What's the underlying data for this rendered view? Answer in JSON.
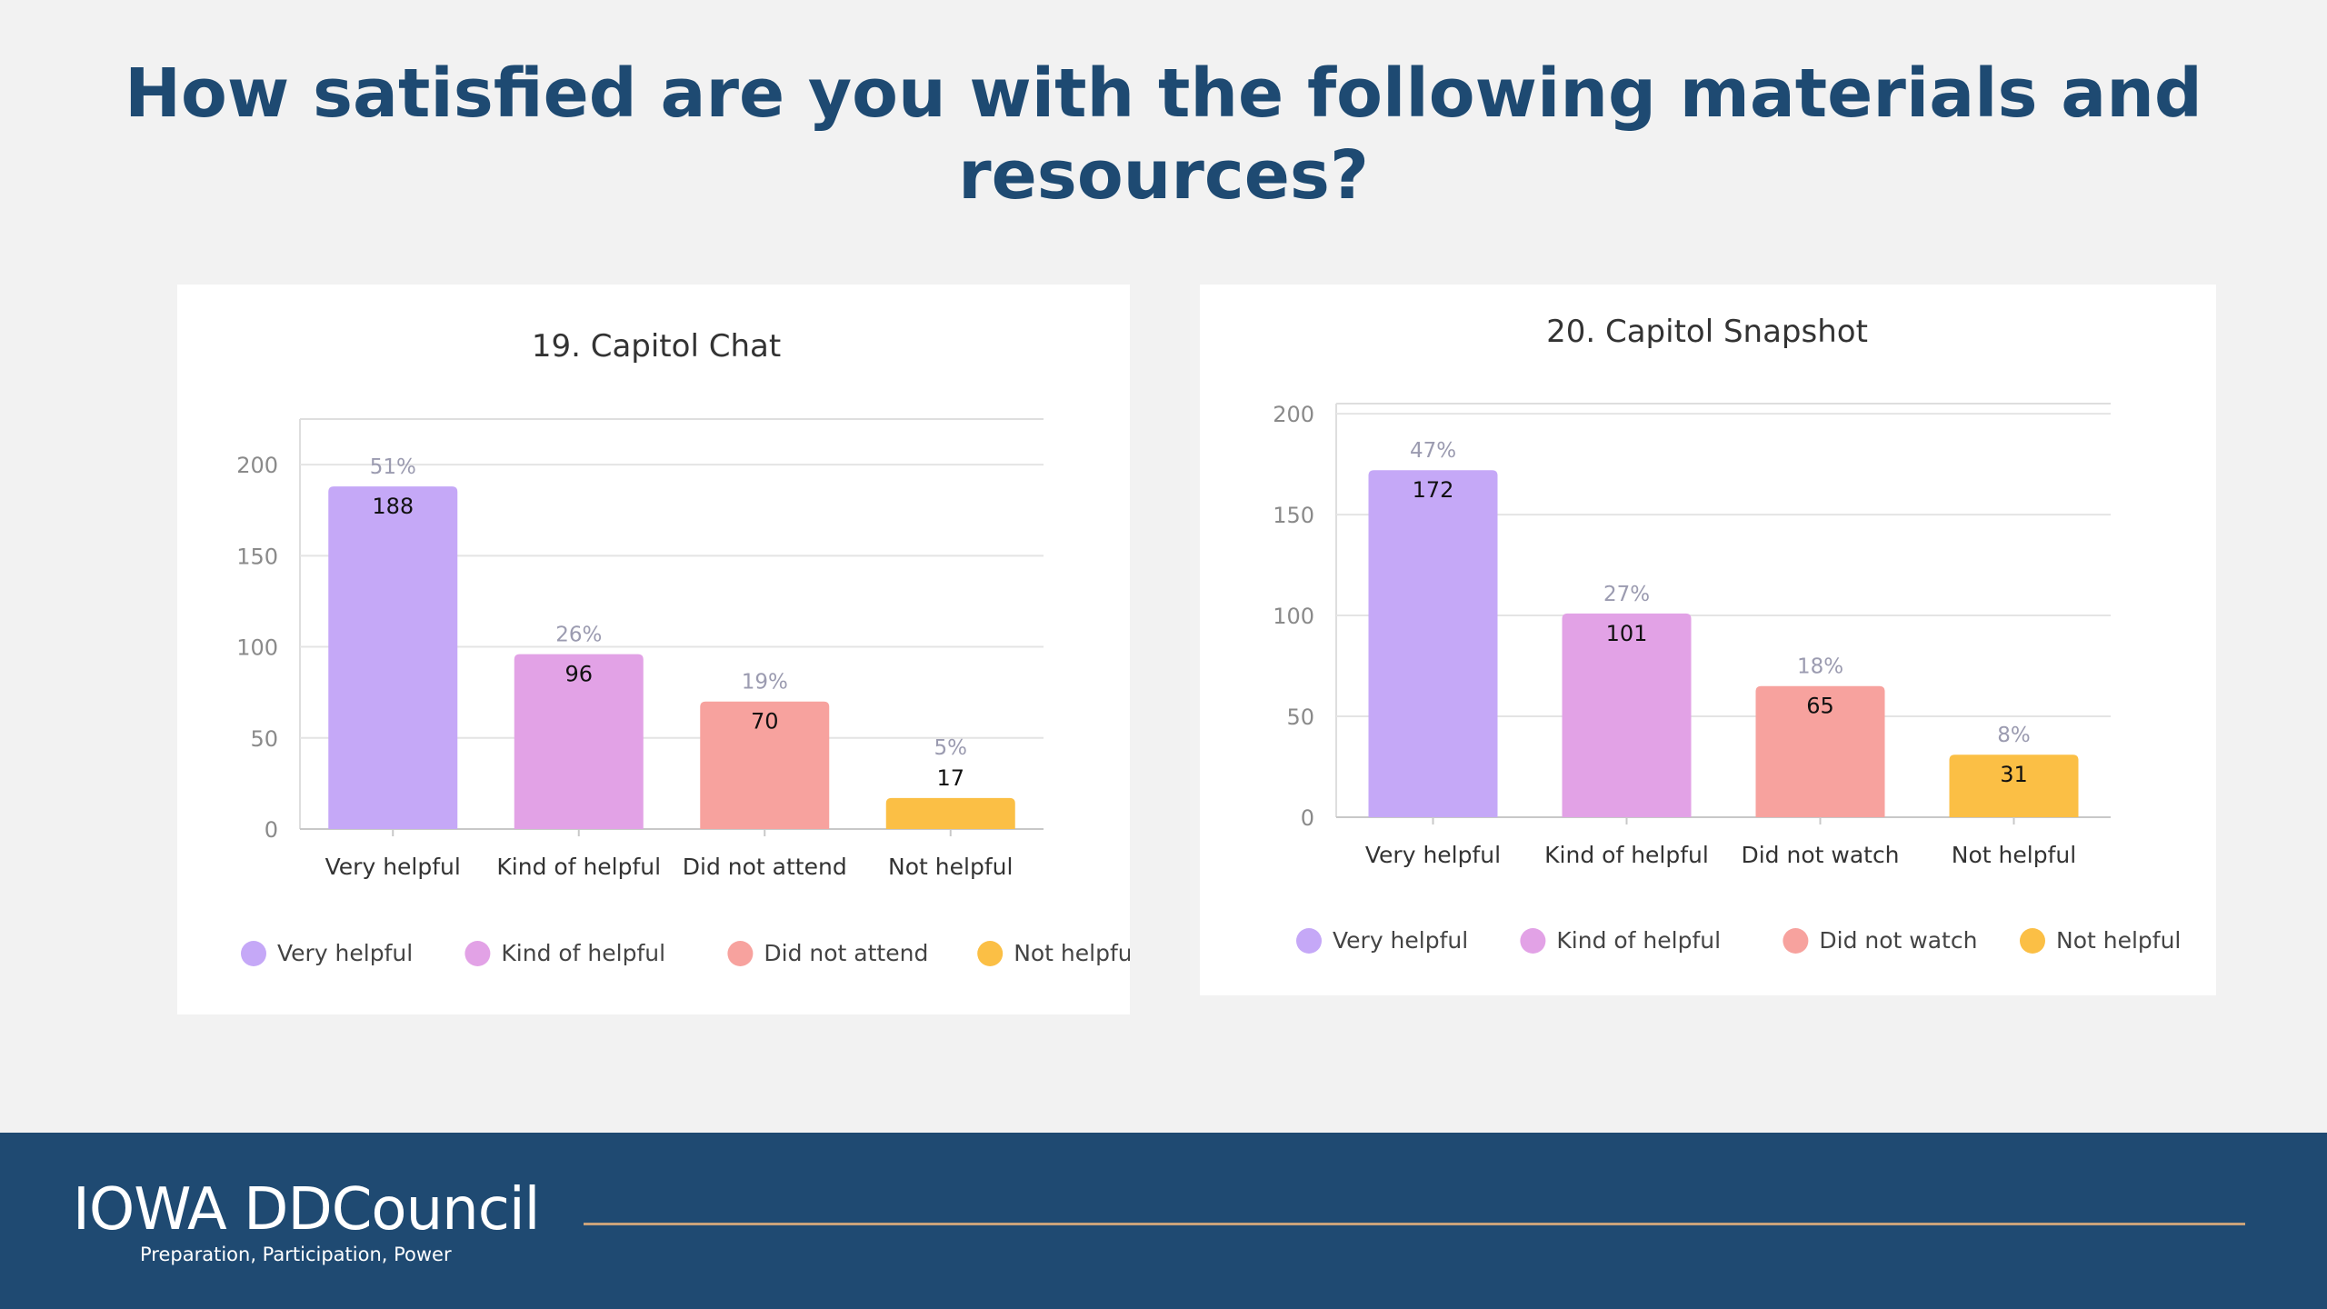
{
  "slide": {
    "title_lines": [
      "How satisfied are you with the following materials and",
      "resources?"
    ]
  },
  "footer": {
    "logo": "IOWA DDCouncil",
    "tagline": "Preparation, Participation, Power"
  },
  "colors": {
    "purple": "#c5a8f7",
    "pink": "#e2a2e6",
    "salmon": "#f7a29e",
    "yellow": "#fbbf45",
    "title": "#1e4a72",
    "footer_bg": "#1f4a72"
  },
  "chart_data": [
    {
      "type": "bar",
      "title": "19. Capitol Chat",
      "categories": [
        "Very helpful",
        "Kind of helpful",
        "Did not attend",
        "Not helpful"
      ],
      "values": [
        188,
        96,
        70,
        17
      ],
      "percent_labels": [
        "51%",
        "26%",
        "19%",
        "5%"
      ],
      "colors": [
        "#c5a8f7",
        "#e2a2e6",
        "#f7a29e",
        "#fbbf45"
      ],
      "yticks": [
        0,
        50,
        100,
        150,
        200
      ],
      "ylim": [
        0,
        225
      ],
      "legend": [
        "Very helpful",
        "Kind of helpful",
        "Did not attend",
        "Not helpful"
      ],
      "legend_position": "bottom",
      "grid": true
    },
    {
      "type": "bar",
      "title": "20. Capitol Snapshot",
      "categories": [
        "Very helpful",
        "Kind of helpful",
        "Did not watch",
        "Not helpful"
      ],
      "values": [
        172,
        101,
        65,
        31
      ],
      "percent_labels": [
        "47%",
        "27%",
        "18%",
        "8%"
      ],
      "colors": [
        "#c5a8f7",
        "#e2a2e6",
        "#f7a29e",
        "#fbbf45"
      ],
      "yticks": [
        0,
        50,
        100,
        150,
        200
      ],
      "ylim": [
        0,
        205
      ],
      "legend": [
        "Very helpful",
        "Kind of helpful",
        "Did not watch",
        "Not helpful"
      ],
      "legend_position": "bottom",
      "grid": true
    }
  ]
}
